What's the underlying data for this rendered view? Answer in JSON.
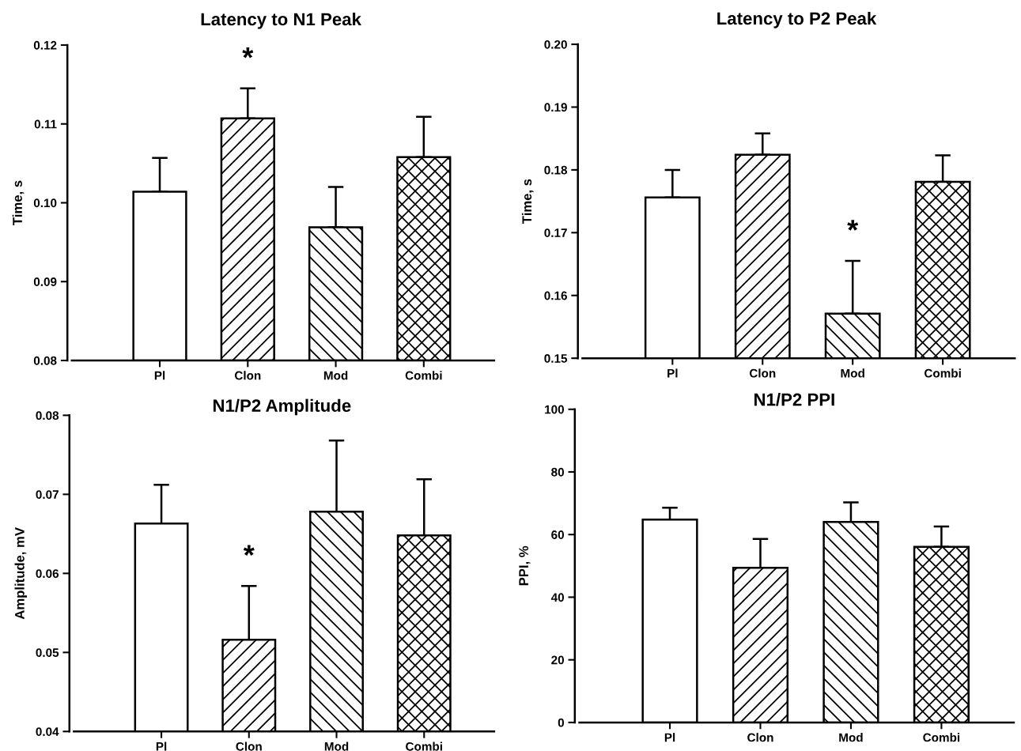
{
  "chart_data": [
    {
      "type": "bar",
      "title": "Latency to N1 Peak",
      "ylabel": "Time, s",
      "categories": [
        "Pl",
        "Clon",
        "Mod",
        "Combi"
      ],
      "values": [
        0.1014,
        0.1107,
        0.0969,
        0.1058
      ],
      "errors": [
        [
          0.1014,
          0.1057
        ],
        [
          0.1107,
          0.1145
        ],
        [
          0.0969,
          0.102
        ],
        [
          0.1058,
          0.1109
        ]
      ],
      "ylim": [
        0.08,
        0.12
      ],
      "yticks": [
        {
          "value": 0.08,
          "label": "0.08"
        },
        {
          "value": 0.09,
          "label": "0.09"
        },
        {
          "value": 0.1,
          "label": "0.10"
        },
        {
          "value": 0.11,
          "label": "0.11"
        },
        {
          "value": 0.12,
          "label": "0.12"
        }
      ],
      "annotations": [
        {
          "text": "*",
          "x": "Clon",
          "y": 0.1145
        }
      ]
    },
    {
      "type": "bar",
      "title": "Latency to P2 Peak",
      "ylabel": "Time, s",
      "categories": [
        "Pl",
        "Clon",
        "Mod",
        "Combi"
      ],
      "values": [
        0.1756,
        0.1824,
        0.1571,
        0.1781
      ],
      "errors": [
        [
          0.1756,
          0.18
        ],
        [
          0.1824,
          0.1858
        ],
        [
          0.1571,
          0.1655
        ],
        [
          0.1781,
          0.1823
        ]
      ],
      "ylim": [
        0.15,
        0.2
      ],
      "yticks": [
        {
          "value": 0.15,
          "label": "0.15"
        },
        {
          "value": 0.16,
          "label": "0.16"
        },
        {
          "value": 0.17,
          "label": "0.17"
        },
        {
          "value": 0.18,
          "label": "0.18"
        },
        {
          "value": 0.19,
          "label": "0.19"
        },
        {
          "value": 0.2,
          "label": "0.20"
        }
      ],
      "annotations": [
        {
          "text": "*",
          "x": "Mod",
          "y": 0.1655
        }
      ]
    },
    {
      "type": "bar",
      "title": "N1/P2 Amplitude",
      "ylabel": "Amplitude, mV",
      "categories": [
        "Pl",
        "Clon",
        "Mod",
        "Combi"
      ],
      "values": [
        0.0663,
        0.0516,
        0.0678,
        0.0648
      ],
      "errors": [
        [
          0.0663,
          0.0712
        ],
        [
          0.0516,
          0.0584
        ],
        [
          0.0678,
          0.0768
        ],
        [
          0.0648,
          0.0719
        ]
      ],
      "ylim": [
        0.04,
        0.08
      ],
      "yticks": [
        {
          "value": 0.04,
          "label": "0.04"
        },
        {
          "value": 0.05,
          "label": "0.05"
        },
        {
          "value": 0.06,
          "label": "0.06"
        },
        {
          "value": 0.07,
          "label": "0.07"
        },
        {
          "value": 0.08,
          "label": "0.08"
        }
      ],
      "annotations": [
        {
          "text": "*",
          "x": "Clon",
          "y": 0.0584
        }
      ]
    },
    {
      "type": "bar",
      "title": "N1/P2 PPI",
      "ylabel": "PPI, %",
      "categories": [
        "Pl",
        "Clon",
        "Mod",
        "Combi"
      ],
      "values": [
        64.8,
        49.4,
        64.0,
        56.1
      ],
      "errors": [
        [
          64.8,
          68.6
        ],
        [
          49.4,
          58.6
        ],
        [
          64.0,
          70.3
        ],
        [
          56.1,
          62.6
        ]
      ],
      "ylim": [
        0,
        100
      ],
      "yticks": [
        0,
        20,
        40,
        60,
        80,
        100
      ]
    }
  ]
}
